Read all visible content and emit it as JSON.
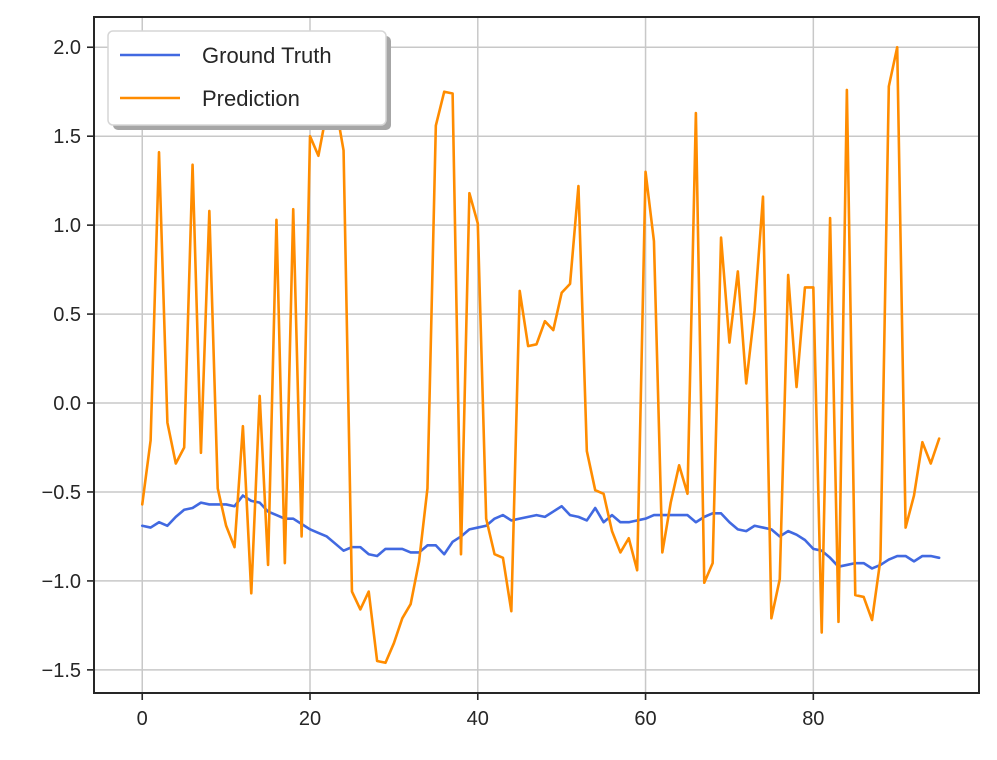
{
  "chart_data": {
    "type": "line",
    "title": "",
    "xlabel": "",
    "ylabel": "",
    "xlim": [
      -5.75,
      99.75
    ],
    "ylim": [
      -1.63,
      2.17
    ],
    "xticks": [
      0,
      20,
      40,
      60,
      80
    ],
    "yticks": [
      -1.5,
      -1.0,
      -0.5,
      0.0,
      0.5,
      1.0,
      1.5,
      2.0
    ],
    "xtick_labels": [
      "0",
      "20",
      "40",
      "60",
      "80"
    ],
    "ytick_labels": [
      "−1.5",
      "−1.0",
      "−0.5",
      "0.0",
      "0.5",
      "1.0",
      "1.5",
      "2.0"
    ],
    "grid": true,
    "legend_position": "top-left",
    "series": [
      {
        "name": "Ground Truth",
        "color": "#4169e1",
        "values": [
          -0.69,
          -0.7,
          -0.67,
          -0.69,
          -0.64,
          -0.6,
          -0.59,
          -0.56,
          -0.57,
          -0.57,
          -0.57,
          -0.58,
          -0.52,
          -0.55,
          -0.56,
          -0.61,
          -0.63,
          -0.65,
          -0.65,
          -0.68,
          -0.71,
          -0.73,
          -0.75,
          -0.79,
          -0.83,
          -0.81,
          -0.81,
          -0.85,
          -0.86,
          -0.82,
          -0.82,
          -0.82,
          -0.84,
          -0.84,
          -0.8,
          -0.8,
          -0.85,
          -0.78,
          -0.75,
          -0.71,
          -0.7,
          -0.69,
          -0.65,
          -0.63,
          -0.66,
          -0.65,
          -0.64,
          -0.63,
          -0.64,
          -0.61,
          -0.58,
          -0.63,
          -0.64,
          -0.66,
          -0.59,
          -0.67,
          -0.63,
          -0.67,
          -0.67,
          -0.66,
          -0.65,
          -0.63,
          -0.63,
          -0.63,
          -0.63,
          -0.63,
          -0.67,
          -0.64,
          -0.62,
          -0.62,
          -0.67,
          -0.71,
          -0.72,
          -0.69,
          -0.7,
          -0.71,
          -0.75,
          -0.72,
          -0.74,
          -0.77,
          -0.82,
          -0.83,
          -0.87,
          -0.92,
          -0.91,
          -0.9,
          -0.9,
          -0.93,
          -0.91,
          -0.88,
          -0.86,
          -0.86,
          -0.89,
          -0.86,
          -0.86,
          -0.87
        ]
      },
      {
        "name": "Prediction",
        "color": "#ff8c00",
        "values": [
          -0.57,
          -0.21,
          1.41,
          -0.11,
          -0.34,
          -0.25,
          1.34,
          -0.28,
          1.08,
          -0.48,
          -0.69,
          -0.81,
          -0.13,
          -1.07,
          0.04,
          -0.91,
          1.03,
          -0.9,
          1.09,
          -0.75,
          1.5,
          1.39,
          1.64,
          1.69,
          1.42,
          -1.06,
          -1.16,
          -1.06,
          -1.45,
          -1.46,
          -1.35,
          -1.21,
          -1.13,
          -0.89,
          -0.48,
          1.56,
          1.75,
          1.74,
          -0.85,
          1.18,
          1.01,
          -0.65,
          -0.85,
          -0.87,
          -1.17,
          0.63,
          0.32,
          0.33,
          0.46,
          0.41,
          0.62,
          0.67,
          1.22,
          -0.27,
          -0.49,
          -0.51,
          -0.72,
          -0.84,
          -0.76,
          -0.94,
          1.3,
          0.91,
          -0.84,
          -0.56,
          -0.35,
          -0.51,
          1.63,
          -1.01,
          -0.9,
          0.93,
          0.34,
          0.74,
          0.11,
          0.52,
          1.16,
          -1.21,
          -0.99,
          0.72,
          0.09,
          0.65,
          0.65,
          -1.29,
          1.04,
          -1.23,
          1.76,
          -1.08,
          -1.09,
          -1.22,
          -0.88,
          1.78,
          2.0,
          -0.7,
          -0.52,
          -0.22,
          -0.34,
          -0.2
        ]
      }
    ]
  }
}
